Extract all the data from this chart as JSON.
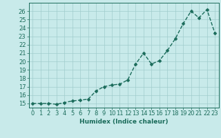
{
  "x": [
    0,
    1,
    2,
    3,
    4,
    5,
    6,
    7,
    8,
    9,
    10,
    11,
    12,
    13,
    14,
    15,
    16,
    17,
    18,
    19,
    20,
    21,
    22,
    23
  ],
  "y": [
    15.0,
    15.0,
    15.0,
    14.9,
    15.1,
    15.3,
    15.4,
    15.5,
    16.5,
    17.0,
    17.2,
    17.3,
    17.8,
    19.7,
    21.0,
    19.7,
    20.1,
    21.3,
    22.7,
    24.5,
    26.0,
    25.2,
    26.2,
    23.4
  ],
  "line_color": "#1a6b5a",
  "marker": "D",
  "marker_size": 2.5,
  "bg_color": "#c8eaea",
  "grid_color": "#a0cccc",
  "xlabel": "Humidex (Indice chaleur)",
  "xlim": [
    -0.5,
    23.5
  ],
  "ylim": [
    14.5,
    27.0
  ],
  "yticks": [
    15,
    16,
    17,
    18,
    19,
    20,
    21,
    22,
    23,
    24,
    25,
    26
  ],
  "xticks": [
    0,
    1,
    2,
    3,
    4,
    5,
    6,
    7,
    8,
    9,
    10,
    11,
    12,
    13,
    14,
    15,
    16,
    17,
    18,
    19,
    20,
    21,
    22,
    23
  ],
  "xlabel_fontsize": 6.5,
  "tick_fontsize": 6,
  "linewidth": 1.0
}
